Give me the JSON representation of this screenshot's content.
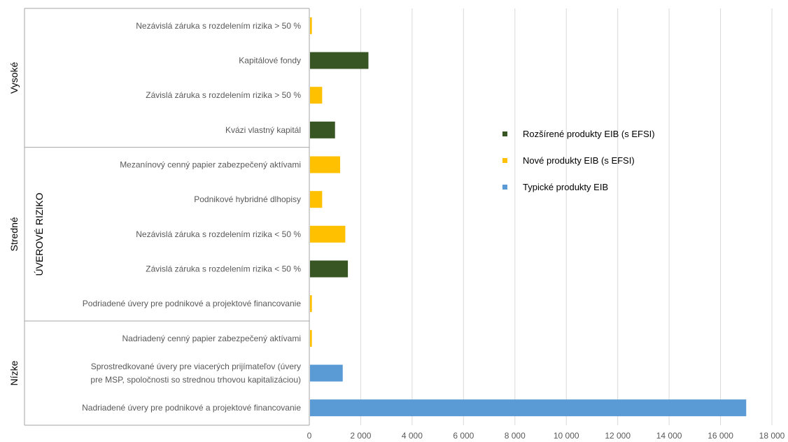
{
  "chart_data": {
    "type": "bar",
    "orientation": "horizontal",
    "title": "",
    "xlabel": "",
    "ylabel": "ÚVEROVÉ RIZIKO",
    "xlim": [
      0,
      18000
    ],
    "xticks": [
      0,
      2000,
      4000,
      6000,
      8000,
      10000,
      12000,
      14000,
      16000,
      18000
    ],
    "xtick_labels": [
      "0",
      "2 000",
      "4 000",
      "6 000",
      "8 000",
      "10 000",
      "12 000",
      "14 000",
      "16 000",
      "18 000"
    ],
    "grid": "vertical",
    "legend_position": "right",
    "series": [
      {
        "name": "Rozšírené produkty EIB (s EFSI)",
        "color": "#375623"
      },
      {
        "name": "Nové produkty EIB (s EFSI)",
        "color": "#FFC000"
      },
      {
        "name": "Typické produkty EIB",
        "color": "#5B9BD5"
      }
    ],
    "groups": [
      {
        "label": "Vysoké",
        "first": 0,
        "last": 3
      },
      {
        "label": "Stredné",
        "first": 4,
        "last": 8
      },
      {
        "label": "Nízke",
        "first": 9,
        "last": 11
      }
    ],
    "categories": [
      {
        "label": [
          "Nezávislá záruka s rozdelením rizika > 50 %"
        ],
        "value": 100,
        "series": 1
      },
      {
        "label": [
          "Kapitálové fondy"
        ],
        "value": 2300,
        "series": 0
      },
      {
        "label": [
          "Závislá záruka s rozdelením rizika > 50 %"
        ],
        "value": 500,
        "series": 1
      },
      {
        "label": [
          "Kvázi vlastný kapitál"
        ],
        "value": 1000,
        "series": 0
      },
      {
        "label": [
          "Mezanínový cenný papier zabezpečený aktívami"
        ],
        "value": 1200,
        "series": 1
      },
      {
        "label": [
          "Podnikové hybridné dlhopisy"
        ],
        "value": 500,
        "series": 1
      },
      {
        "label": [
          "Nezávislá záruka s rozdelením rizika < 50 %"
        ],
        "value": 1400,
        "series": 1
      },
      {
        "label": [
          "Závislá záruka s rozdelením rizika < 50 %"
        ],
        "value": 1500,
        "series": 0
      },
      {
        "label": [
          "Podriadené úvery pre podnikové a projektové financovanie"
        ],
        "value": 100,
        "series": 1
      },
      {
        "label": [
          "Nadriadený cenný papier zabezpečený aktívami"
        ],
        "value": 100,
        "series": 1
      },
      {
        "label": [
          "Sprostredkované úvery pre viacerých prijímateľov (úvery",
          "pre MSP, spoločnosti so strednou trhovou kapitalizáciou)"
        ],
        "value": 1300,
        "series": 2
      },
      {
        "label": [
          "Nadriadené úvery pre podnikové a projektové financovanie"
        ],
        "value": 17000,
        "series": 2
      }
    ]
  }
}
